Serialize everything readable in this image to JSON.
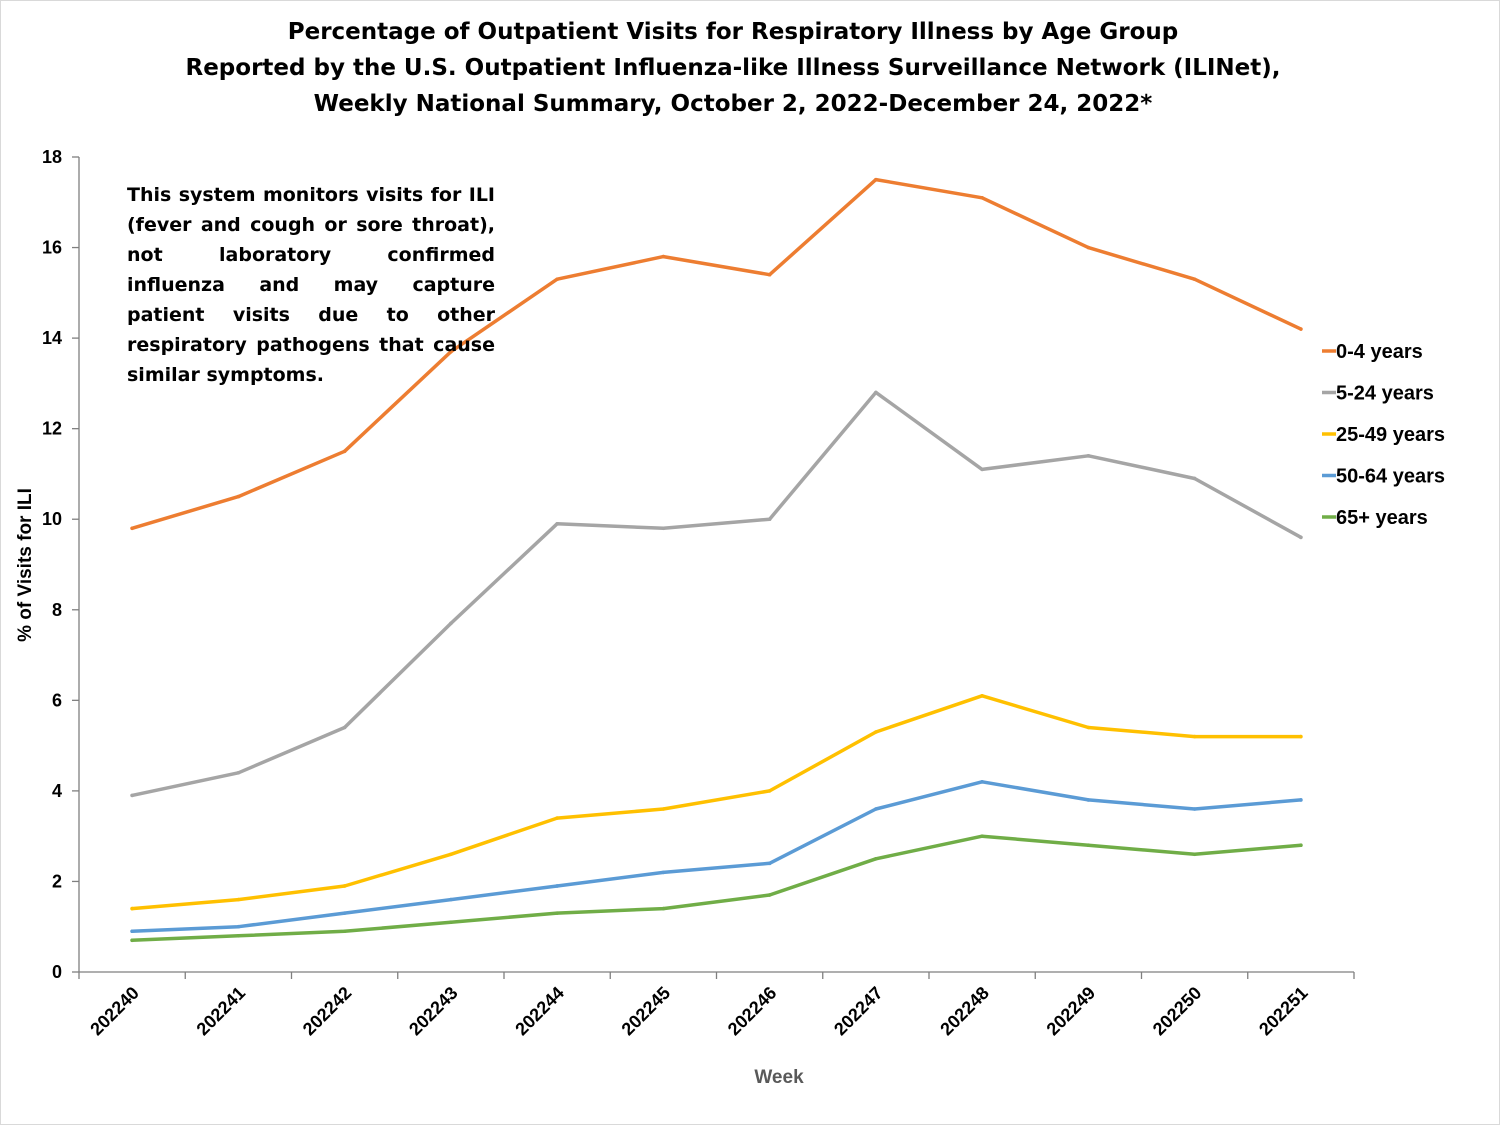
{
  "chart_data": {
    "type": "line",
    "title": "Percentage of Outpatient Visits for Respiratory Illness by Age Group",
    "title_lines": [
      "Percentage of Outpatient Visits for Respiratory Illness by Age Group",
      "Reported by the U.S. Outpatient Influenza-like Illness Surveillance Network (ILINet),",
      "Weekly National Summary, October 2, 2022-December 24, 2022*"
    ],
    "xlabel": "Week",
    "ylabel": "% of Visits for ILI",
    "ylim": [
      0,
      18
    ],
    "yticks": [
      0,
      2,
      4,
      6,
      8,
      10,
      12,
      14,
      16,
      18
    ],
    "categories": [
      "202240",
      "202241",
      "202242",
      "202243",
      "202244",
      "202245",
      "202246",
      "202247",
      "202248",
      "202249",
      "202250",
      "202251"
    ],
    "series": [
      {
        "name": "0-4 years",
        "color": "#ED7D31",
        "values": [
          9.8,
          10.5,
          11.5,
          13.7,
          15.3,
          15.8,
          15.4,
          17.5,
          17.1,
          16.0,
          15.3,
          14.2
        ]
      },
      {
        "name": "5-24 years",
        "color": "#A5A5A5",
        "values": [
          3.9,
          4.4,
          5.4,
          7.7,
          9.9,
          9.8,
          10.0,
          12.8,
          11.1,
          11.4,
          10.9,
          9.6
        ]
      },
      {
        "name": "25-49 years",
        "color": "#FFC000",
        "values": [
          1.4,
          1.6,
          1.9,
          2.6,
          3.4,
          3.6,
          4.0,
          5.3,
          6.1,
          5.4,
          5.2,
          5.2
        ]
      },
      {
        "name": "50-64 years",
        "color": "#5B9BD5",
        "values": [
          0.9,
          1.0,
          1.3,
          1.6,
          1.9,
          2.2,
          2.4,
          3.6,
          4.2,
          3.8,
          3.6,
          3.8
        ]
      },
      {
        "name": "65+ years",
        "color": "#70AD47",
        "values": [
          0.7,
          0.8,
          0.9,
          1.1,
          1.3,
          1.4,
          1.7,
          2.5,
          3.0,
          2.8,
          2.6,
          2.8
        ]
      }
    ],
    "legend_position": "right",
    "annotation": "This system monitors visits for ILI (fever and cough or sore throat), not laboratory confirmed influenza and may capture patient visits due to other respiratory pathogens that cause similar symptoms.",
    "grid": false,
    "axis_color": "#7f7f7f",
    "xlabel_color": "#595959"
  }
}
